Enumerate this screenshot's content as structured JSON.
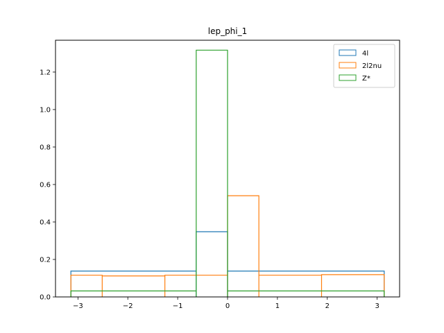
{
  "chart_data": {
    "type": "histogram-step",
    "title": "lep_phi_1",
    "xlabel": "",
    "ylabel": "",
    "xlim": [
      -3.45,
      3.45
    ],
    "ylim": [
      0,
      1.37
    ],
    "xticks": [
      -3,
      -2,
      -1,
      0,
      1,
      2,
      3
    ],
    "xtick_labels": [
      "−3",
      "−2",
      "−1",
      "0",
      "1",
      "2",
      "3"
    ],
    "yticks": [
      0.0,
      0.2,
      0.4,
      0.6,
      0.8,
      1.0,
      1.2
    ],
    "ytick_labels": [
      "0.0",
      "0.2",
      "0.4",
      "0.6",
      "0.8",
      "1.0",
      "1.2"
    ],
    "grid": false,
    "legend_position": "top-right",
    "series": [
      {
        "name": "4l",
        "color": "#1f77b4",
        "edges": [
          -3.1416,
          -0.6283,
          0.0,
          3.1416
        ],
        "values": [
          0.138,
          0.348,
          0.138
        ]
      },
      {
        "name": "2l2nu",
        "color": "#ff7f0e",
        "edges": [
          -3.1416,
          -2.5133,
          -1.2566,
          0.0,
          0.6283,
          1.885,
          3.1416
        ],
        "values": [
          0.116,
          0.112,
          0.116,
          0.54,
          0.116,
          0.119
        ]
      },
      {
        "name": "Z*",
        "color": "#2ca02c",
        "edges": [
          -3.1416,
          -0.6283,
          0.0,
          3.1416
        ],
        "values": [
          0.032,
          1.317,
          0.032
        ]
      }
    ]
  }
}
